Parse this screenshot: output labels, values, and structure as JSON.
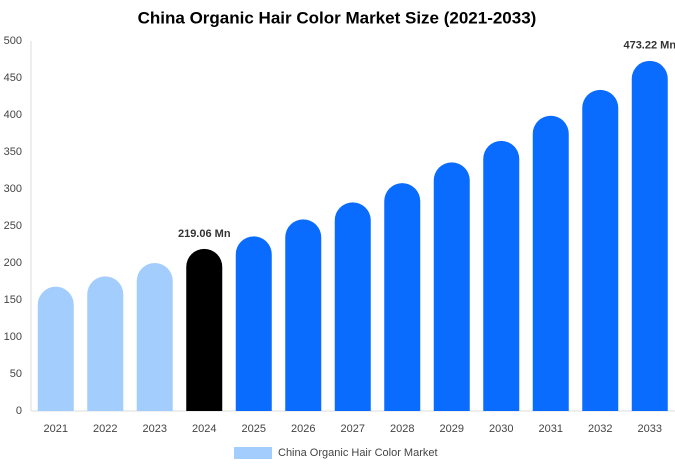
{
  "chart_data": {
    "type": "bar",
    "title": "China Organic Hair Color Market Size (2021-2033)",
    "categories": [
      "2021",
      "2022",
      "2023",
      "2024",
      "2025",
      "2026",
      "2027",
      "2028",
      "2029",
      "2030",
      "2031",
      "2032",
      "2033"
    ],
    "series": [
      {
        "name": "China Organic Hair Color Market",
        "color": "#a3cdfc",
        "values": [
          168,
          182,
          200,
          219.06,
          236,
          259,
          282,
          308,
          336,
          365,
          399,
          434,
          473.22
        ],
        "value_labels": [
          null,
          null,
          null,
          "219.06 Mn",
          null,
          null,
          null,
          null,
          null,
          null,
          null,
          null,
          "473.22 Mn"
        ],
        "colors": [
          "#a3cdfc",
          "#a3cdfc",
          "#a3cdfc",
          "#000000",
          "#0a6cff",
          "#0a6cff",
          "#0a6cff",
          "#0a6cff",
          "#0a6cff",
          "#0a6cff",
          "#0a6cff",
          "#0a6cff",
          "#0a6cff"
        ]
      }
    ],
    "ylim": [
      0,
      500
    ],
    "yticks": [
      0,
      50,
      100,
      150,
      200,
      250,
      300,
      350,
      400,
      450,
      500
    ],
    "grid": false,
    "legend": "bottom"
  }
}
